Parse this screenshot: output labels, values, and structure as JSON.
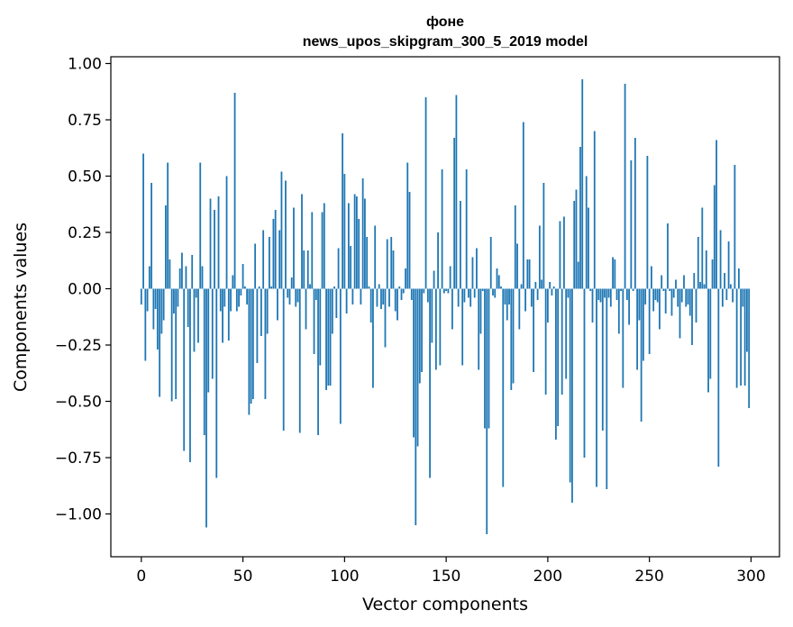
{
  "chart_data": {
    "type": "bar",
    "title_line1": "фоне",
    "title_line2": "news_upos_skipgram_300_5_2019 model",
    "xlabel": "Vector components",
    "ylabel": "Components values",
    "xlim": [
      -15,
      314
    ],
    "ylim": [
      -1.19,
      1.03
    ],
    "xticks": [
      0,
      50,
      100,
      150,
      200,
      250,
      300
    ],
    "xtick_labels": [
      "0",
      "50",
      "100",
      "150",
      "200",
      "250",
      "300"
    ],
    "yticks": [
      1.0,
      0.75,
      0.5,
      0.25,
      0.0,
      -0.25,
      -0.5,
      -0.75,
      -1.0
    ],
    "ytick_labels": [
      "1.00",
      "0.75",
      "0.50",
      "0.25",
      "0.00",
      "−0.25",
      "−0.50",
      "−0.75",
      "−1.00"
    ],
    "bar_color": "#1f77b4",
    "values": [
      -0.07,
      0.6,
      -0.32,
      -0.1,
      0.1,
      0.47,
      -0.18,
      -0.09,
      -0.27,
      -0.48,
      -0.2,
      -0.14,
      0.37,
      0.56,
      0.13,
      -0.5,
      -0.11,
      -0.49,
      -0.08,
      0.09,
      0.16,
      -0.72,
      0.1,
      -0.17,
      -0.77,
      0.15,
      -0.28,
      -0.04,
      -0.24,
      0.56,
      0.1,
      -0.65,
      -1.06,
      -0.46,
      0.4,
      -0.4,
      0.35,
      -0.84,
      0.41,
      -0.1,
      -0.24,
      -0.08,
      0.5,
      -0.23,
      -0.1,
      0.06,
      0.87,
      -0.1,
      -0.08,
      -0.03,
      0.11,
      0.01,
      -0.07,
      -0.56,
      -0.51,
      -0.49,
      0.2,
      -0.33,
      0.01,
      -0.21,
      0.26,
      -0.49,
      -0.2,
      0.23,
      0.01,
      0.31,
      0.35,
      -0.14,
      0.26,
      0.52,
      -0.63,
      0.48,
      -0.04,
      -0.07,
      0.05,
      0.36,
      -0.08,
      -0.06,
      -0.64,
      0.42,
      0.17,
      -0.18,
      0.17,
      0.02,
      0.34,
      -0.29,
      -0.05,
      -0.65,
      -0.34,
      0.34,
      0.38,
      -0.45,
      -0.43,
      -0.43,
      -0.2,
      0.01,
      -0.13,
      0.18,
      -0.6,
      0.69,
      0.51,
      -0.11,
      0.38,
      0.19,
      -0.07,
      0.42,
      0.41,
      0.31,
      -0.07,
      0.49,
      0.4,
      0.23,
      0.01,
      -0.15,
      -0.44,
      0.28,
      -0.08,
      0.02,
      -0.09,
      -0.07,
      -0.26,
      0.22,
      -0.08,
      0.23,
      0.17,
      -0.1,
      -0.14,
      0.01,
      -0.05,
      -0.02,
      0.09,
      0.56,
      0.43,
      -0.05,
      -0.66,
      -1.05,
      -0.7,
      -0.42,
      -0.37,
      -0.02,
      0.85,
      -0.06,
      -0.84,
      -0.24,
      0.08,
      -0.36,
      0.25,
      -0.34,
      0.53,
      -0.02,
      -0.01,
      -0.02,
      0.1,
      -0.18,
      0.67,
      0.86,
      -0.08,
      0.39,
      -0.34,
      -0.06,
      0.53,
      -0.04,
      -0.08,
      0.14,
      -0.04,
      0.18,
      -0.36,
      -0.2,
      -0.01,
      -0.62,
      -1.09,
      -0.62,
      0.23,
      -0.03,
      -0.04,
      0.09,
      0.06,
      0.01,
      -0.88,
      -0.07,
      -0.14,
      -0.07,
      -0.45,
      -0.42,
      0.37,
      0.2,
      -0.18,
      0.02,
      0.74,
      -0.1,
      0.13,
      0.13,
      -0.08,
      -0.37,
      0.03,
      -0.05,
      0.28,
      0.04,
      0.47,
      -0.47,
      -0.15,
      0.03,
      -0.03,
      0.01,
      -0.67,
      -0.61,
      0.3,
      -0.47,
      0.32,
      -0.4,
      -0.04,
      -0.86,
      -0.95,
      0.39,
      0.44,
      0.12,
      0.63,
      0.93,
      -0.75,
      0.5,
      0.36,
      -0.01,
      -0.15,
      0.7,
      -0.88,
      -0.05,
      -0.06,
      -0.63,
      -0.04,
      -0.89,
      -0.04,
      -0.08,
      0.14,
      0.13,
      -0.05,
      -0.2,
      -0.01,
      -0.44,
      0.91,
      -0.05,
      -0.16,
      0.57,
      -0.01,
      0.67,
      -0.36,
      -0.14,
      -0.59,
      -0.32,
      -0.07,
      0.59,
      -0.29,
      0.1,
      -0.1,
      -0.05,
      -0.06,
      -0.18,
      0.06,
      -0.01,
      -0.11,
      0.29,
      -0.01,
      -0.12,
      -0.04,
      0.04,
      -0.08,
      -0.22,
      -0.06,
      0.06,
      -0.08,
      -0.07,
      -0.12,
      -0.25,
      0.07,
      -0.15,
      0.23,
      0.03,
      0.36,
      0.02,
      0.17,
      -0.46,
      -0.4,
      0.13,
      0.46,
      0.66,
      -0.79,
      0.26,
      -0.08,
      0.07,
      -0.05,
      0.21,
      0.02,
      -0.06,
      0.55,
      -0.44,
      0.09,
      -0.43,
      -0.08,
      -0.43,
      -0.28,
      -0.53
    ]
  }
}
